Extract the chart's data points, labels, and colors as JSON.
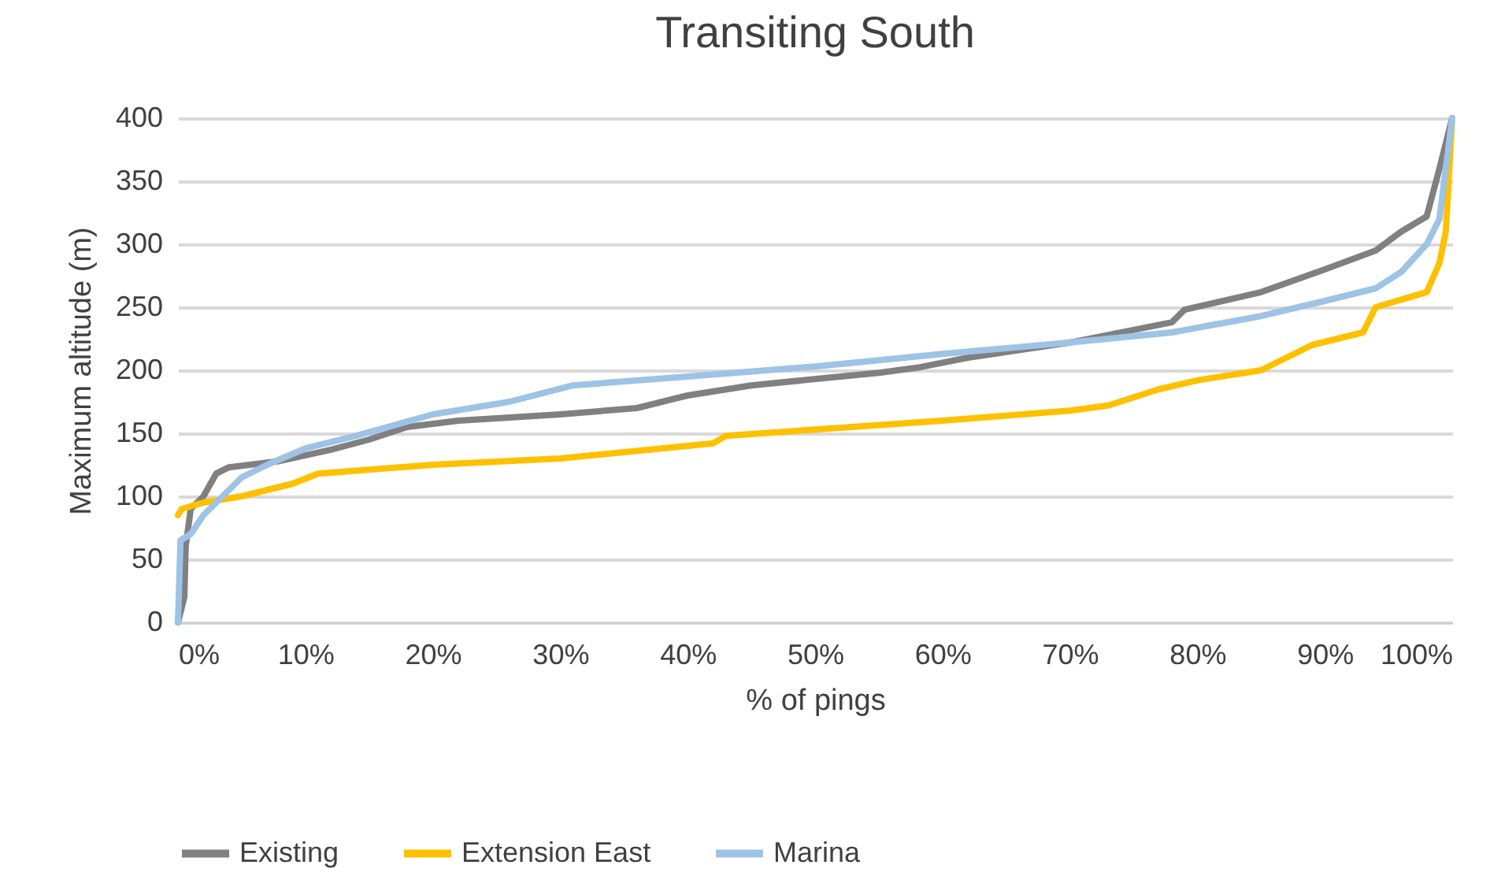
{
  "chart_data": {
    "type": "line",
    "title": "Transiting South",
    "xlabel": "% of pings",
    "ylabel": "Maximum altitude (m)",
    "xlim": [
      0,
      100
    ],
    "ylim": [
      0,
      400
    ],
    "xticks": [
      {
        "value": 0,
        "label": "0%"
      },
      {
        "value": 10,
        "label": "10%"
      },
      {
        "value": 20,
        "label": "20%"
      },
      {
        "value": 30,
        "label": "30%"
      },
      {
        "value": 40,
        "label": "40%"
      },
      {
        "value": 50,
        "label": "50%"
      },
      {
        "value": 60,
        "label": "60%"
      },
      {
        "value": 70,
        "label": "70%"
      },
      {
        "value": 80,
        "label": "80%"
      },
      {
        "value": 90,
        "label": "90%"
      },
      {
        "value": 100,
        "label": "100%"
      }
    ],
    "yticks": [
      0,
      50,
      100,
      150,
      200,
      250,
      300,
      350,
      400
    ],
    "grid": "y",
    "legend": "bottom",
    "marker": "none",
    "line_style": "solid",
    "series": [
      {
        "name": "Existing",
        "color": "#808080",
        "x": [
          0,
          0.5,
          0.6,
          1,
          2,
          3,
          4,
          8,
          12,
          15,
          18,
          22,
          30,
          36,
          40,
          45,
          55,
          58,
          62,
          70,
          78,
          79,
          85,
          90,
          94,
          96,
          98,
          99,
          100
        ],
        "values": [
          0,
          20,
          60,
          90,
          100,
          118,
          123,
          128,
          137,
          145,
          155,
          160,
          165,
          170,
          180,
          188,
          198,
          202,
          210,
          222,
          238,
          248,
          262,
          280,
          295,
          310,
          322,
          360,
          400
        ]
      },
      {
        "name": "Extension East",
        "color": "#ffc000",
        "x": [
          0,
          0.3,
          2,
          5,
          9,
          11,
          20,
          30,
          40,
          42,
          43,
          50,
          60,
          70,
          73,
          77,
          80,
          85,
          87,
          89,
          93,
          94,
          98,
          99,
          99.5,
          100
        ],
        "values": [
          85,
          90,
          95,
          100,
          110,
          118,
          125,
          130,
          140,
          142,
          148,
          153,
          160,
          168,
          172,
          185,
          192,
          200,
          210,
          220,
          230,
          250,
          262,
          285,
          310,
          400
        ]
      },
      {
        "name": "Marina",
        "color": "#9dc3e6",
        "x": [
          0,
          0.2,
          1,
          2,
          3,
          5,
          7,
          10,
          14,
          20,
          26,
          31,
          40,
          50,
          60,
          70,
          78,
          85,
          90,
          94,
          96,
          98,
          99,
          100
        ],
        "values": [
          0,
          65,
          70,
          85,
          95,
          115,
          125,
          138,
          148,
          165,
          175,
          188,
          195,
          203,
          213,
          222,
          230,
          243,
          255,
          265,
          278,
          300,
          320,
          400
        ]
      }
    ]
  }
}
